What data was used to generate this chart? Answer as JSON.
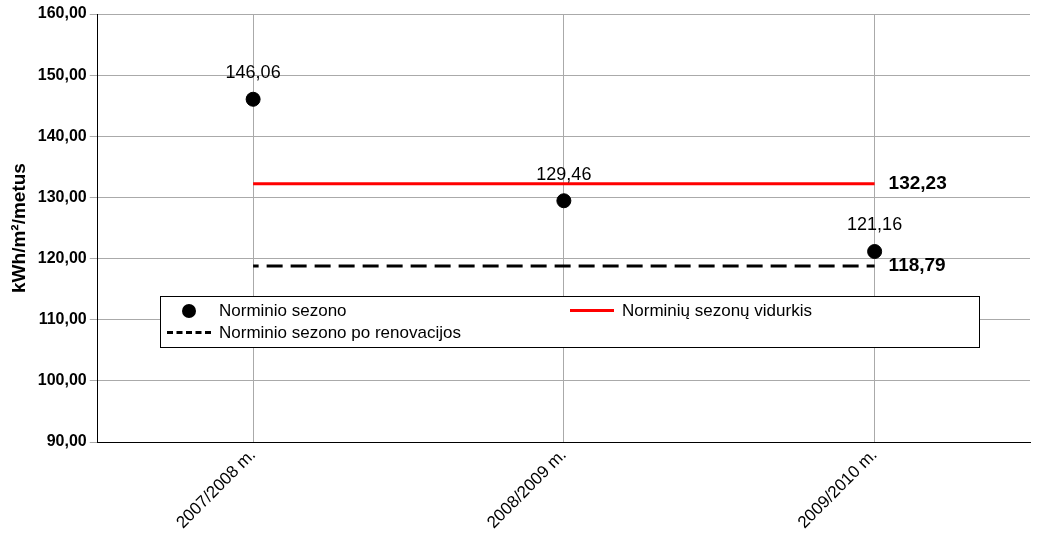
{
  "chart_data": {
    "type": "line",
    "ylabel": "kWh/m²/metus",
    "categories": [
      "2007/2008 m.",
      "2008/2009 m.",
      "2009/2010 m."
    ],
    "ylim": [
      90,
      160
    ],
    "yticks": [
      {
        "value": 90,
        "label": "90,00"
      },
      {
        "value": 100,
        "label": "100,00"
      },
      {
        "value": 110,
        "label": "110,00"
      },
      {
        "value": 120,
        "label": "120,00"
      },
      {
        "value": 130,
        "label": "130,00"
      },
      {
        "value": 140,
        "label": "140,00"
      },
      {
        "value": 150,
        "label": "150,00"
      },
      {
        "value": 160,
        "label": "160,00"
      }
    ],
    "grid": true,
    "legend": "bottom",
    "series": [
      {
        "name": "Norminio sezono",
        "type": "scatter",
        "marker": "circle",
        "color": "#000000",
        "values": [
          146.06,
          129.46,
          121.16
        ],
        "value_labels": [
          "146,06",
          "129,46",
          "121,16"
        ]
      },
      {
        "name": "Norminių sezonų vidurkis",
        "type": "line",
        "marker": "none",
        "line_style": "solid",
        "color": "#ff0000",
        "values": [
          132.23,
          132.23,
          132.23
        ],
        "value_labels": [
          null,
          null,
          "132,23"
        ]
      },
      {
        "name": "Norminio sezono po renovacijos",
        "type": "line",
        "marker": "none",
        "line_style": "dashed",
        "color": "#000000",
        "values": [
          118.79,
          118.79,
          118.79
        ],
        "value_labels": [
          null,
          null,
          "118,79"
        ]
      }
    ]
  }
}
